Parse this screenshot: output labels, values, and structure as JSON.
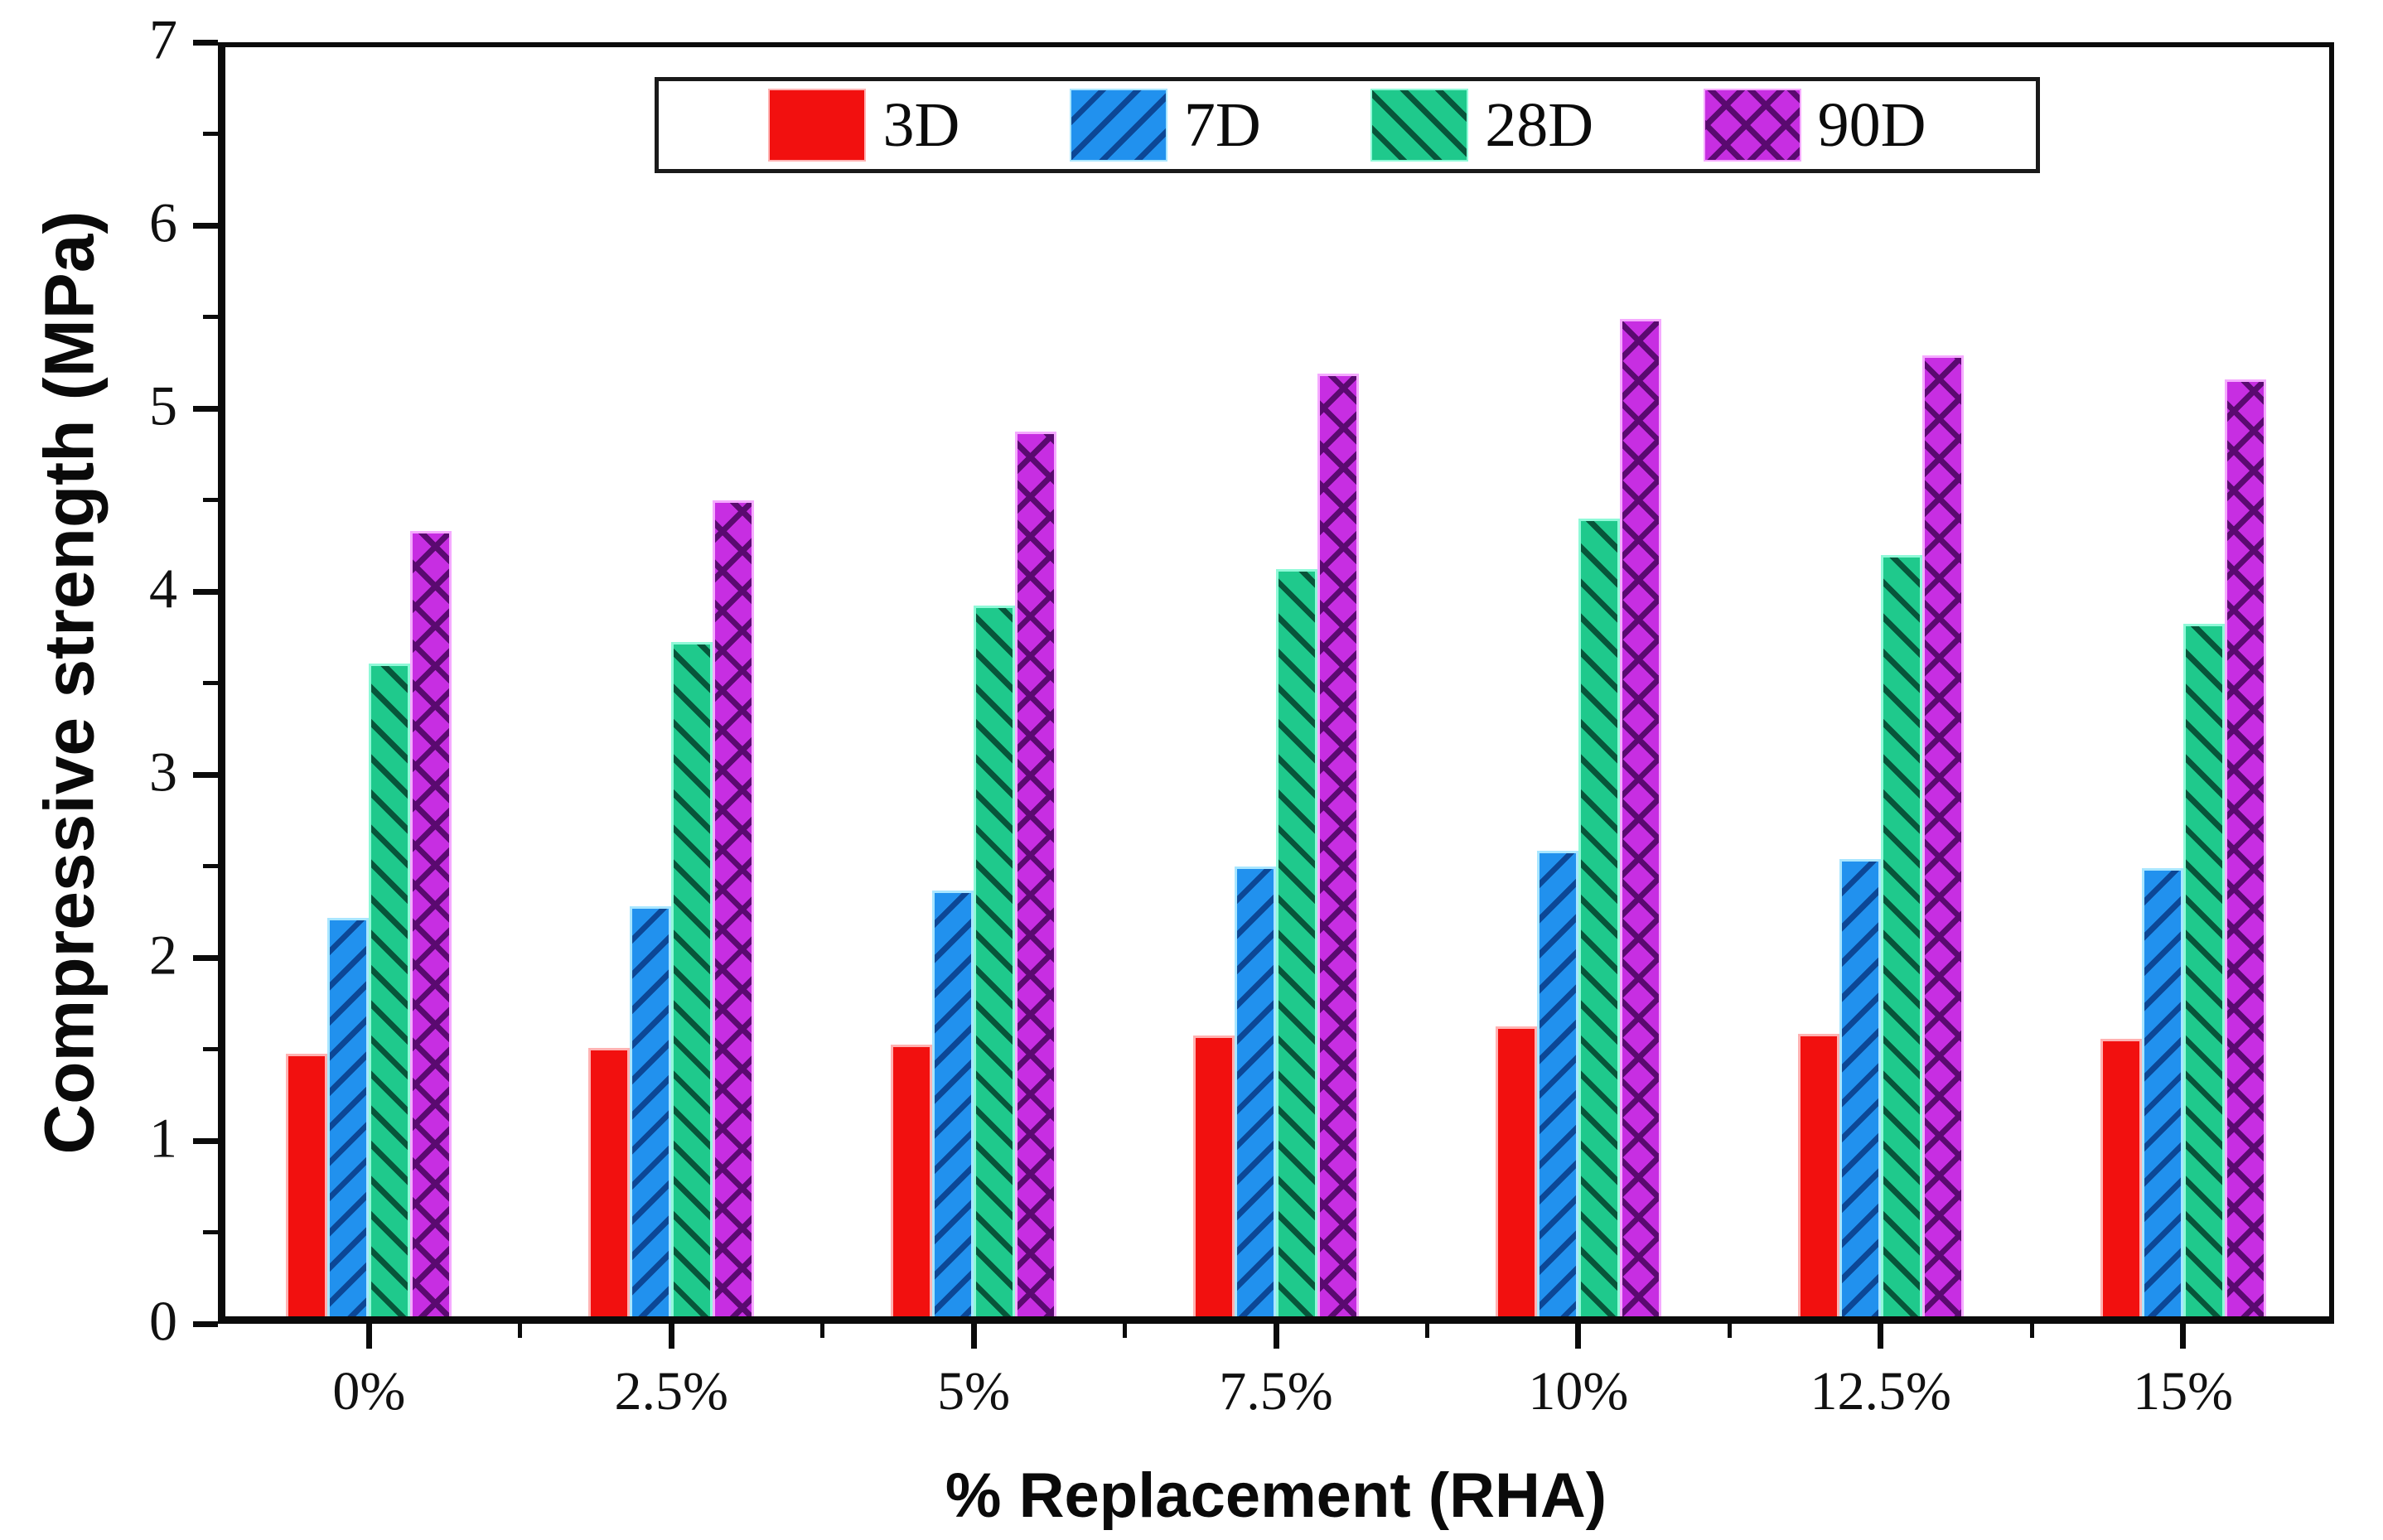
{
  "figure": {
    "background": "#ffffff",
    "frame_color": "#0b0b0b"
  },
  "chart_data": {
    "type": "bar",
    "title": "",
    "xlabel": "% Replacement (RHA)",
    "ylabel": "Compressive strength (MPa)",
    "categories": [
      "0%",
      "2.5%",
      "5%",
      "7.5%",
      "10%",
      "12.5%",
      "15%"
    ],
    "series": [
      {
        "name": "3D",
        "fill": "#f2100f",
        "edge": "#ffb2b2",
        "hatch": "none",
        "hatch_color": "#8c0003",
        "values": [
          1.45,
          1.48,
          1.5,
          1.55,
          1.6,
          1.56,
          1.53
        ]
      },
      {
        "name": "7D",
        "fill": "#2191ee",
        "edge": "#a9e6ff",
        "hatch": "forward",
        "hatch_color": "#0c4796",
        "values": [
          2.2,
          2.26,
          2.35,
          2.48,
          2.57,
          2.52,
          2.47
        ]
      },
      {
        "name": "28D",
        "fill": "#1fc98c",
        "edge": "#90f9d8",
        "hatch": "backward",
        "hatch_color": "#07553a",
        "values": [
          3.6,
          3.72,
          3.92,
          4.12,
          4.4,
          4.2,
          3.82
        ]
      },
      {
        "name": "90D",
        "fill": "#c72ee2",
        "edge": "#f5aaff",
        "hatch": "cross",
        "hatch_color": "#5a0a70",
        "values": [
          4.33,
          4.5,
          4.88,
          5.2,
          5.5,
          5.3,
          5.17
        ]
      }
    ],
    "ylim": [
      0,
      7
    ],
    "yticks": [
      "0",
      "1",
      "2",
      "3",
      "4",
      "5",
      "6",
      "7"
    ],
    "minor_y_step": 0.5,
    "legend_position": "top-center",
    "legend_labels": [
      "3D",
      "7D",
      "28D",
      "90D"
    ],
    "grid": false
  }
}
